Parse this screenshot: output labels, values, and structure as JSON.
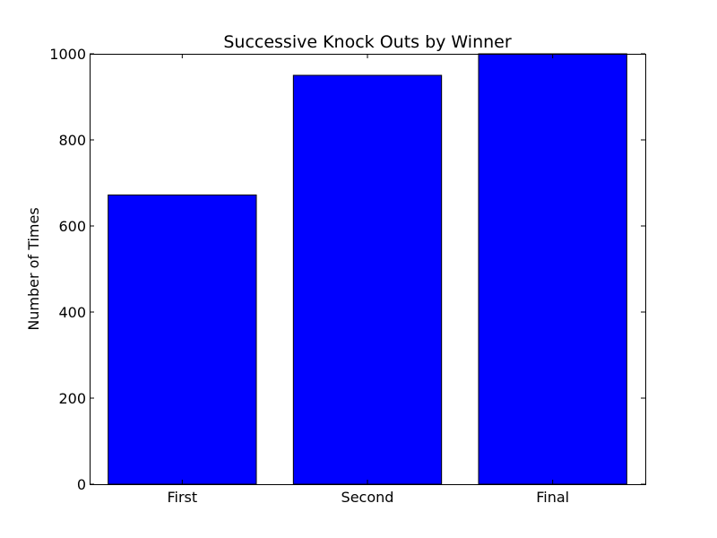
{
  "chart_data": {
    "type": "bar",
    "title": "Successive Knock Outs by Winner",
    "xlabel": "",
    "ylabel": "Number of Times",
    "categories": [
      "First",
      "Second",
      "Final"
    ],
    "values": [
      672,
      950,
      1000
    ],
    "ylim": [
      0,
      1000
    ],
    "yticks": [
      0,
      200,
      400,
      600,
      800,
      1000
    ],
    "grid": false,
    "legend": "none",
    "bar_color": "#0000ff",
    "edge_color": "#000000"
  }
}
